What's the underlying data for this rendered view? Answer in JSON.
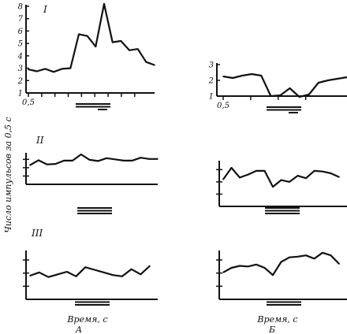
{
  "figure": {
    "ylabel": "Число импульсов за 0,5 с",
    "captions": [
      {
        "line1": "Время, с",
        "line2": "А"
      },
      {
        "line1": "Время, с",
        "line2": "Б"
      }
    ]
  },
  "chart_data": [
    {
      "type": "line",
      "panel": "A-I",
      "roman": "I",
      "y_tick_labels": [
        "1",
        "2",
        "3",
        "4",
        "5",
        "6",
        "7",
        "8"
      ],
      "ylim": [
        1,
        8
      ],
      "x_tick_label": "0,5",
      "values": [
        2.9,
        2.75,
        2.95,
        2.7,
        2.95,
        3.0,
        5.75,
        5.6,
        4.75,
        8.2,
        5.1,
        5.2,
        4.45,
        4.55,
        3.5,
        3.25
      ],
      "stimulus_bars": 2,
      "stimulus_short_bars": 1
    },
    {
      "type": "line",
      "panel": "B-I",
      "roman": "",
      "y_tick_labels": [
        "1",
        "2",
        "3"
      ],
      "ylim": [
        1,
        3
      ],
      "x_tick_label": "0,5",
      "values": [
        2.25,
        2.15,
        2.3,
        2.4,
        2.3,
        1.0,
        1.05,
        1.5,
        0.95,
        1.1,
        1.85,
        2.0,
        2.1,
        2.2
      ],
      "stimulus_bars": 2,
      "stimulus_short_bars": 1
    },
    {
      "type": "line",
      "panel": "A-II",
      "roman": "II",
      "y_tick_labels": [],
      "ylim": [
        0,
        4
      ],
      "values": [
        2.3,
        2.9,
        2.4,
        2.45,
        2.85,
        2.85,
        3.6,
        2.95,
        2.8,
        3.15,
        3.0,
        2.85,
        2.85,
        3.2,
        3.05,
        3.05
      ],
      "stimulus_bars": 3,
      "stimulus_short_bars": 0
    },
    {
      "type": "line",
      "panel": "B-II",
      "roman": "",
      "y_tick_labels": [],
      "ylim": [
        0,
        4
      ],
      "values": [
        2.2,
        3.15,
        2.35,
        2.6,
        2.9,
        2.9,
        1.6,
        2.15,
        2.0,
        2.5,
        2.3,
        2.9,
        2.85,
        2.7,
        2.4
      ],
      "stimulus_bars": 3,
      "stimulus_short_bars": 0
    },
    {
      "type": "line",
      "panel": "A-III",
      "roman": "III",
      "y_tick_labels": [],
      "ylim": [
        0,
        4
      ],
      "values": [
        1.8,
        2.05,
        1.7,
        1.9,
        2.1,
        1.75,
        2.45,
        2.25,
        2.05,
        1.85,
        1.75,
        2.3,
        1.9,
        2.55
      ],
      "stimulus_bars": 3,
      "stimulus_short_bars": 0
    },
    {
      "type": "line",
      "panel": "B-III",
      "roman": "",
      "y_tick_labels": [],
      "ylim": [
        0,
        4
      ],
      "values": [
        2.05,
        2.4,
        2.55,
        2.5,
        2.65,
        2.4,
        1.85,
        2.85,
        3.2,
        3.25,
        3.35,
        3.1,
        3.55,
        3.35,
        2.7
      ],
      "stimulus_bars": 3,
      "stimulus_short_bars": 0
    }
  ]
}
